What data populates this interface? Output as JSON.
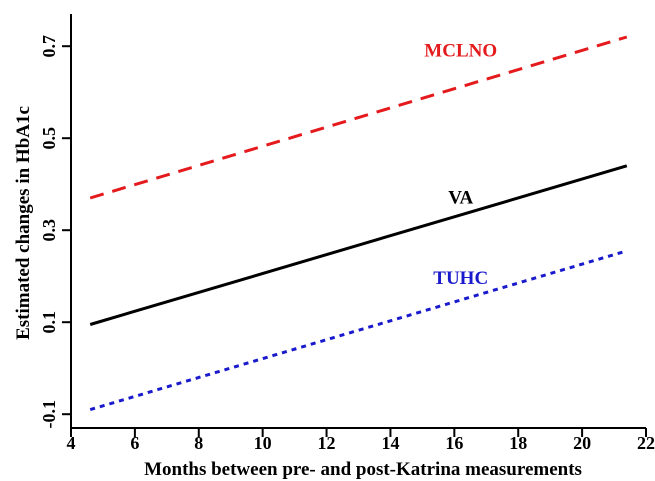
{
  "chart_data": {
    "type": "line",
    "title": "",
    "xlabel": "Months between pre- and post-Katrina measurements",
    "ylabel": "Estimated changes in HbA1c",
    "xlim": [
      4,
      22
    ],
    "ylim": [
      -0.13,
      0.77
    ],
    "x_ticks": [
      4,
      6,
      8,
      10,
      12,
      14,
      16,
      18,
      20,
      22
    ],
    "x_tick_labels": [
      "4",
      "6",
      "8",
      "10",
      "12",
      "14",
      "16",
      "18",
      "20",
      "22"
    ],
    "y_ticks": [
      -0.1,
      0.1,
      0.3,
      0.5,
      0.7
    ],
    "y_tick_labels": [
      "-0.1",
      "0.1",
      "0.3",
      "0.5",
      "0.7"
    ],
    "grid": false,
    "legend": "none (series labeled directly above each line)",
    "series": [
      {
        "name": "MCLNO",
        "color": "#e41a1c",
        "line_style": "dashed",
        "x": [
          4.6,
          21.4
        ],
        "y": [
          0.37,
          0.72
        ],
        "label_anchor": {
          "x": 16.2,
          "y": 0.678
        }
      },
      {
        "name": "VA",
        "color": "#000000",
        "line_style": "solid",
        "x": [
          4.6,
          21.4
        ],
        "y": [
          0.095,
          0.44
        ],
        "label_anchor": {
          "x": 16.2,
          "y": 0.358
        }
      },
      {
        "name": "TUHC",
        "color": "#1a1acd",
        "line_style": "dotted",
        "x": [
          4.6,
          21.4
        ],
        "y": [
          -0.09,
          0.255
        ],
        "label_anchor": {
          "x": 16.2,
          "y": 0.183
        }
      }
    ]
  }
}
